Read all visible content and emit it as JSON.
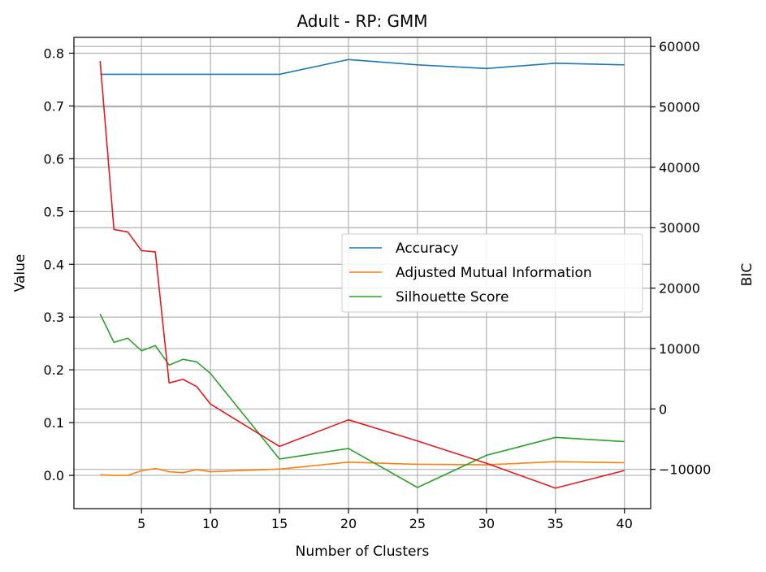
{
  "chart_data": {
    "type": "line",
    "title": "Adult - RP: GMM",
    "xlabel": "Number of Clusters",
    "ylabel": "Value",
    "y2label": "BIC",
    "xlim": [
      0.1,
      41.9
    ],
    "ylim": [
      -0.063,
      0.83
    ],
    "y2lim": [
      -16500,
      61500
    ],
    "xticks": [
      5,
      10,
      15,
      20,
      25,
      30,
      35,
      40
    ],
    "yticks": [
      0.0,
      0.1,
      0.2,
      0.3,
      0.4,
      0.5,
      0.6,
      0.7,
      0.8
    ],
    "y2ticks": [
      -10000,
      0,
      10000,
      20000,
      30000,
      40000,
      50000,
      60000
    ],
    "grid": true,
    "legend_position": "center-right",
    "x": [
      2,
      3,
      4,
      5,
      6,
      7,
      8,
      9,
      10,
      15,
      20,
      25,
      30,
      35,
      40
    ],
    "series": [
      {
        "name": "Accuracy",
        "axis": "left",
        "color": "#1f77b4",
        "values": [
          0.76,
          0.76,
          0.76,
          0.76,
          0.76,
          0.76,
          0.76,
          0.76,
          0.76,
          0.76,
          0.788,
          0.778,
          0.771,
          0.781,
          0.778
        ]
      },
      {
        "name": "Adjusted Mutual Information",
        "axis": "left",
        "color": "#ff7f0e",
        "values": [
          0.001,
          0.0,
          0.0,
          0.009,
          0.013,
          0.007,
          0.005,
          0.011,
          0.007,
          0.012,
          0.025,
          0.021,
          0.02,
          0.026,
          0.024
        ]
      },
      {
        "name": "Silhouette Score",
        "axis": "left",
        "color": "#2ca02c",
        "values": [
          0.306,
          0.252,
          0.26,
          0.236,
          0.246,
          0.209,
          0.22,
          0.215,
          0.193,
          0.031,
          0.051,
          -0.023,
          0.038,
          0.072,
          0.064
        ]
      },
      {
        "axis": "right",
        "color": "#e41a1c",
        "values": [
          57600,
          29700,
          29300,
          26200,
          26000,
          4300,
          4900,
          3700,
          800,
          -6200,
          -1800,
          -5300,
          -9000,
          -13100,
          -10200
        ]
      }
    ]
  }
}
